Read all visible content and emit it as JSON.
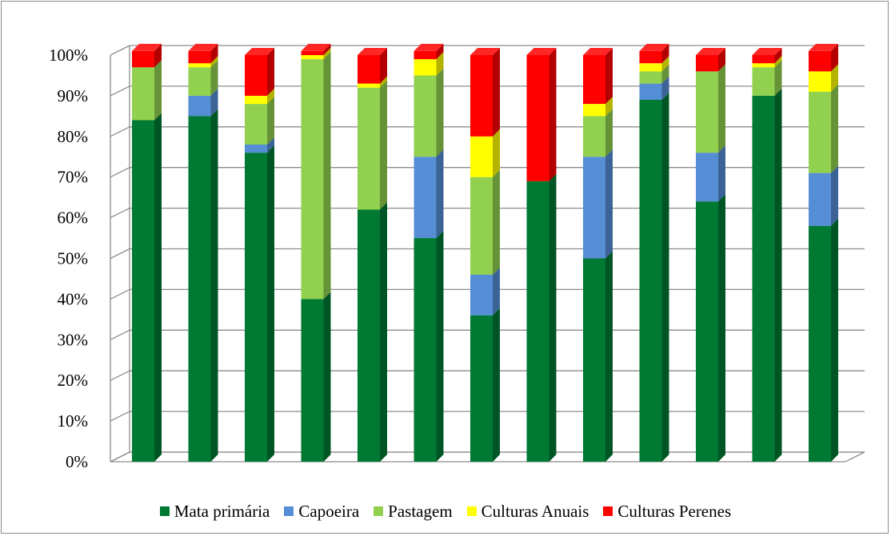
{
  "chart_data": {
    "type": "bar",
    "stacked": true,
    "three_d": true,
    "grid": true,
    "legend_position": "bottom",
    "ylim": [
      0,
      100
    ],
    "y_ticks": [
      "0%",
      "10%",
      "20%",
      "30%",
      "40%",
      "50%",
      "60%",
      "70%",
      "80%",
      "90%",
      "100%"
    ],
    "categories": [
      "",
      "",
      "",
      "",
      "",
      "",
      "",
      "",
      "",
      "",
      "",
      "",
      ""
    ],
    "series": [
      {
        "name": "Mata primária",
        "color": "#007a33",
        "values": [
          84,
          85,
          76,
          40,
          62,
          55,
          36,
          69,
          50,
          89,
          64,
          90,
          58
        ]
      },
      {
        "name": "Capoeira",
        "color": "#558ed5",
        "values": [
          0,
          5,
          2,
          0,
          0,
          20,
          10,
          0,
          25,
          4,
          12,
          0,
          13
        ]
      },
      {
        "name": "Pastagem",
        "color": "#92d050",
        "values": [
          13,
          7,
          10,
          59,
          30,
          20,
          24,
          0,
          10,
          3,
          20,
          7,
          20
        ]
      },
      {
        "name": "Culturas Anuais",
        "color": "#ffff00",
        "values": [
          0,
          1,
          2,
          1,
          1,
          4,
          10,
          0,
          3,
          2,
          0,
          1,
          5
        ]
      },
      {
        "name": "Culturas Perenes",
        "color": "#ff0000",
        "values": [
          4,
          3,
          10,
          1,
          7,
          2,
          20,
          31,
          12,
          3,
          4,
          2,
          5
        ]
      }
    ]
  }
}
